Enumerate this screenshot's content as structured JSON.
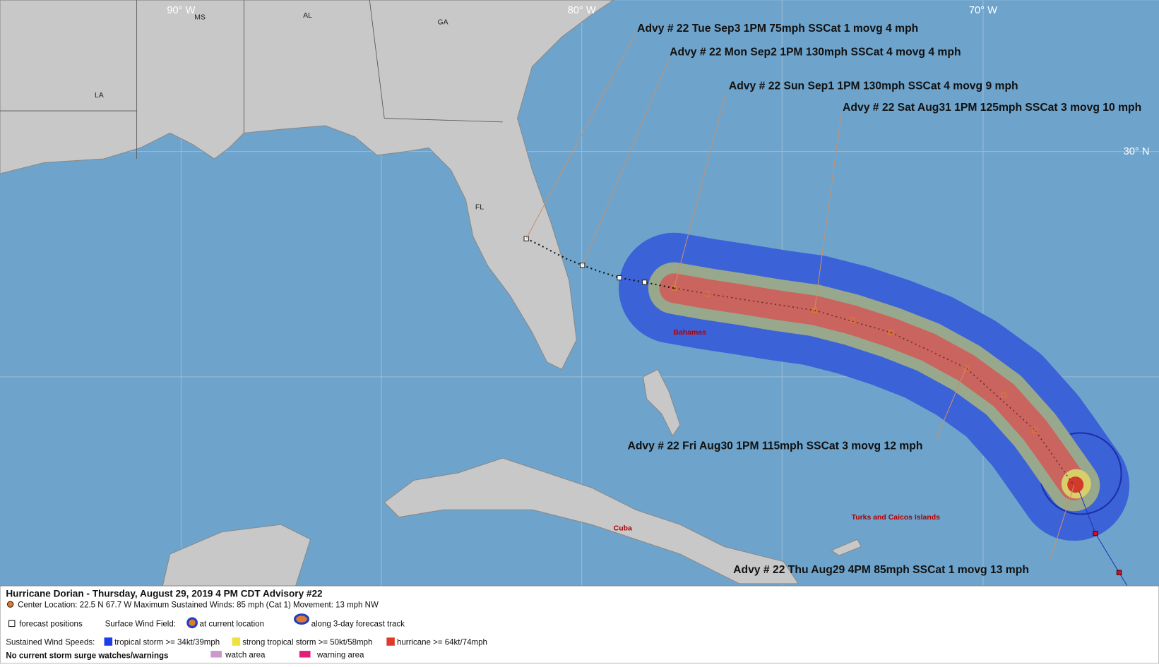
{
  "map": {
    "grid_labels": [
      "90° W",
      "80° W",
      "70° W",
      "30° N"
    ],
    "state_labels": [
      "MS",
      "AL",
      "GA",
      "LA",
      "FL"
    ],
    "place_labels": [
      "Bahamas",
      "Cuba",
      "Turks and Caicos Islands"
    ],
    "advisories": [
      "Advy # 22 Tue Sep3 1PM  75mph SSCat 1 movg 4 mph",
      "Advy # 22 Mon Sep2 1PM  130mph SSCat 4 movg 4 mph",
      "Advy # 22 Sun Sep1 1PM  130mph SSCat 4 movg 9 mph",
      "Advy # 22 Sat Aug31 1PM  125mph SSCat 3 movg 10 mph",
      "Advy # 22 Fri Aug30 1PM  115mph SSCat 3 movg 12 mph",
      "Advy # 22 Thu Aug29 4PM  85mph SSCat 1 movg 13 mph"
    ],
    "legend": {
      "title": "Hurricane Dorian  -  Thursday, August 29, 2019  4 PM CDT   Advisory #22",
      "center": "Center Location: 22.5 N  67.7 W   Maximum Sustained Winds: 85 mph (Cat 1) Movement: 13 mph NW",
      "forecast_positions": "forecast positions",
      "surface_wind_field": "Surface Wind Field:",
      "at_current_location": "at current location",
      "along_track": "along 3-day forecast track",
      "sustained_wind_speeds": "Sustained Wind Speeds:",
      "tropical_storm": "tropical storm >= 34kt/39mph",
      "strong_tropical_storm": "strong tropical storm >= 50kt/58mph",
      "hurricane": "hurricane >= 64kt/74mph",
      "surge_note": "No current storm surge watches/warnings",
      "watch_area": "watch area",
      "warning_area": "warning area"
    }
  }
}
